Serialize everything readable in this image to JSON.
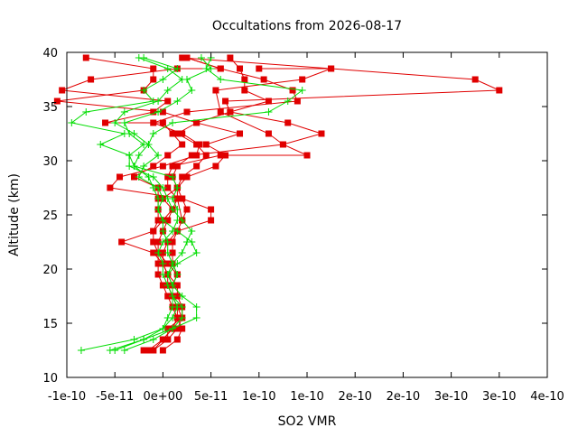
{
  "chart_data": {
    "type": "line",
    "title": "Occultations from 2026-08-17",
    "xlabel": "SO2 VMR",
    "ylabel": "Altitude (km)",
    "xlim": [
      -1e-10,
      4e-10
    ],
    "ylim": [
      10,
      40
    ],
    "x_tick_values": [
      -1e-10,
      -5e-11,
      0,
      5e-11,
      1e-10,
      1.5e-10,
      2e-10,
      2.5e-10,
      3e-10,
      3.5e-10,
      4e-10
    ],
    "x_tick_labels": [
      "-1e-10",
      "-5e-11",
      "0e+00",
      "5e-11",
      "1e-10",
      "1e-10",
      "2e-10",
      "2e-10",
      "3e-10",
      "3e-10",
      "4e-10"
    ],
    "y_ticks": [
      10,
      15,
      20,
      25,
      30,
      35,
      40
    ],
    "grid": false,
    "legend": "none",
    "series": [
      {
        "marker": "square",
        "color": "#e00000",
        "points": [
          [
            -2e-11,
            12.5
          ],
          [
            -1e-11,
            12.5
          ],
          [
            5e-12,
            13.5
          ],
          [
            1.5e-11,
            14.5
          ],
          [
            2e-11,
            15.5
          ],
          [
            1.5e-11,
            16.5
          ],
          [
            1e-11,
            17.5
          ],
          [
            5e-12,
            18.5
          ],
          [
            5e-12,
            19.5
          ],
          [
            0,
            20.5
          ],
          [
            -1e-11,
            21.5
          ],
          [
            -4.3e-11,
            22.5
          ],
          [
            -1e-11,
            23.5
          ],
          [
            -5e-12,
            24.5
          ],
          [
            -5e-12,
            25.5
          ],
          [
            -5e-12,
            26.5
          ],
          [
            -5e-12,
            27.5
          ],
          [
            -3e-11,
            28.5
          ],
          [
            -1e-11,
            29.5
          ],
          [
            5e-12,
            30.5
          ],
          [
            2e-11,
            31.5
          ],
          [
            1e-11,
            32.5
          ],
          [
            0,
            33.5
          ],
          [
            -6e-11,
            33.5
          ],
          [
            -1e-11,
            34.5
          ],
          [
            5e-12,
            35.5
          ],
          [
            -1.05e-10,
            36.5
          ],
          [
            -7.5e-11,
            37.5
          ],
          [
            1.5e-11,
            38.5
          ],
          [
            6e-11,
            38.5
          ],
          [
            2.5e-11,
            39.5
          ]
        ]
      },
      {
        "marker": "square",
        "color": "#e00000",
        "points": [
          [
            -1e-11,
            12.5
          ],
          [
            0,
            13.5
          ],
          [
            1e-11,
            14.5
          ],
          [
            1.5e-11,
            15.5
          ],
          [
            1e-11,
            16.5
          ],
          [
            5e-12,
            17.5
          ],
          [
            0,
            18.5
          ],
          [
            -5e-12,
            19.5
          ],
          [
            -5e-12,
            20.5
          ],
          [
            -5e-12,
            21.5
          ],
          [
            -1e-11,
            22.5
          ],
          [
            -1e-11,
            23.5
          ],
          [
            0,
            24.5
          ],
          [
            1e-11,
            25.5
          ],
          [
            1.5e-11,
            26.5
          ],
          [
            1.5e-11,
            27.5
          ],
          [
            2e-11,
            28.5
          ],
          [
            3.5e-11,
            29.5
          ],
          [
            4.5e-11,
            30.5
          ],
          [
            3.5e-11,
            31.5
          ],
          [
            1.5e-11,
            32.5
          ],
          [
            3.5e-11,
            33.5
          ],
          [
            0,
            34.5
          ],
          [
            -1.1e-10,
            35.5
          ],
          [
            -2e-11,
            36.5
          ],
          [
            -1e-11,
            37.5
          ],
          [
            -1e-11,
            38.5
          ],
          [
            -8e-11,
            39.5
          ]
        ]
      },
      {
        "marker": "square",
        "color": "#e00000",
        "points": [
          [
            0,
            12.5
          ],
          [
            1.5e-11,
            13.5
          ],
          [
            2e-11,
            14.5
          ],
          [
            1.5e-11,
            15.5
          ],
          [
            1.5e-11,
            16.5
          ],
          [
            1e-11,
            17.5
          ],
          [
            1e-11,
            18.5
          ],
          [
            1.5e-11,
            19.5
          ],
          [
            1e-11,
            20.5
          ],
          [
            1e-11,
            21.5
          ],
          [
            1e-11,
            22.5
          ],
          [
            1.5e-11,
            23.5
          ],
          [
            2e-11,
            24.5
          ],
          [
            2.5e-11,
            25.5
          ],
          [
            2e-11,
            26.5
          ],
          [
            -5.5e-11,
            27.5
          ],
          [
            -4.5e-11,
            28.5
          ],
          [
            0,
            29.5
          ],
          [
            3.5e-11,
            30.5
          ],
          [
            3.8e-11,
            31.5
          ],
          [
            2e-11,
            32.5
          ],
          [
            -1e-11,
            33.5
          ],
          [
            2.5e-11,
            34.5
          ],
          [
            1.4e-10,
            35.5
          ],
          [
            1.35e-10,
            36.5
          ],
          [
            1.05e-10,
            37.5
          ],
          [
            6e-11,
            38.5
          ],
          [
            2.5e-11,
            39.5
          ]
        ]
      },
      {
        "marker": "square",
        "color": "#e00000",
        "points": [
          [
            -1.5e-11,
            12.5
          ],
          [
            0,
            13.5
          ],
          [
            1e-11,
            14.5
          ],
          [
            1.5e-11,
            15.5
          ],
          [
            1e-11,
            16.5
          ],
          [
            1e-11,
            17.5
          ],
          [
            1e-11,
            18.5
          ],
          [
            1.5e-11,
            19.5
          ],
          [
            5e-12,
            20.5
          ],
          [
            -5e-12,
            21.5
          ],
          [
            -5e-12,
            22.5
          ],
          [
            0,
            23.5
          ],
          [
            5e-12,
            24.5
          ],
          [
            1e-11,
            25.5
          ],
          [
            0,
            26.5
          ],
          [
            1.5e-11,
            27.5
          ],
          [
            2.5e-11,
            28.5
          ],
          [
            5.5e-11,
            29.5
          ],
          [
            6.5e-11,
            30.5
          ],
          [
            4.5e-11,
            31.5
          ],
          [
            8e-11,
            32.5
          ],
          [
            3.5e-11,
            33.5
          ],
          [
            7e-11,
            34.5
          ],
          [
            1.1e-10,
            35.5
          ],
          [
            8.5e-11,
            36.5
          ],
          [
            8.5e-11,
            37.5
          ],
          [
            8e-11,
            38.5
          ],
          [
            7e-11,
            39.5
          ]
        ]
      },
      {
        "marker": "square",
        "color": "#e00000",
        "points": [
          [
            5e-12,
            13.5
          ],
          [
            5e-12,
            14.5
          ],
          [
            2e-11,
            15.5
          ],
          [
            2e-11,
            16.5
          ],
          [
            1.5e-11,
            17.5
          ],
          [
            1.5e-11,
            18.5
          ],
          [
            5e-12,
            19.5
          ],
          [
            0,
            20.5
          ],
          [
            0,
            21.5
          ],
          [
            5e-12,
            22.5
          ],
          [
            1.5e-11,
            23.5
          ],
          [
            5e-11,
            24.5
          ],
          [
            5e-11,
            25.5
          ],
          [
            2e-11,
            26.5
          ],
          [
            1.5e-11,
            27.5
          ],
          [
            1e-11,
            28.5
          ],
          [
            1.5e-11,
            29.5
          ],
          [
            3e-11,
            30.5
          ],
          [
            1.25e-10,
            31.5
          ],
          [
            1.65e-10,
            32.5
          ],
          [
            1.3e-10,
            33.5
          ],
          [
            7e-11,
            34.5
          ],
          [
            6.5e-11,
            35.5
          ],
          [
            3.5e-10,
            36.5
          ],
          [
            3.25e-10,
            37.5
          ],
          [
            1.75e-10,
            38.5
          ],
          [
            1e-10,
            38.5
          ]
        ]
      },
      {
        "marker": "square",
        "color": "#e00000",
        "points": [
          [
            2e-11,
            24.5
          ],
          [
            1.5e-11,
            26.5
          ],
          [
            5e-12,
            27.5
          ],
          [
            5e-12,
            28.5
          ],
          [
            1e-11,
            29.5
          ],
          [
            6e-11,
            30.5
          ],
          [
            1.5e-10,
            30.5
          ],
          [
            1.25e-10,
            31.5
          ],
          [
            1.1e-10,
            32.5
          ],
          [
            6e-11,
            34.5
          ],
          [
            5.5e-11,
            36.5
          ],
          [
            1.45e-10,
            37.5
          ],
          [
            1.75e-10,
            38.5
          ],
          [
            2e-11,
            39.5
          ]
        ]
      },
      {
        "marker": "plus",
        "color": "#00dd00",
        "points": [
          [
            -8.5e-11,
            12.5
          ],
          [
            -3e-11,
            13.5
          ],
          [
            0,
            14.5
          ],
          [
            5e-12,
            15.5
          ],
          [
            1e-11,
            16.5
          ],
          [
            1e-11,
            17.5
          ],
          [
            1e-11,
            18.5
          ],
          [
            1.5e-11,
            19.5
          ],
          [
            1e-11,
            20.5
          ],
          [
            5e-12,
            21.5
          ],
          [
            5e-12,
            22.5
          ],
          [
            0,
            23.5
          ],
          [
            0,
            24.5
          ],
          [
            -5e-12,
            25.5
          ],
          [
            -5e-12,
            26.5
          ],
          [
            -1e-11,
            27.5
          ],
          [
            -1.5e-11,
            28.5
          ],
          [
            -3e-11,
            29.5
          ],
          [
            -3.5e-11,
            30.5
          ],
          [
            -6.5e-11,
            31.5
          ],
          [
            -4e-11,
            32.5
          ],
          [
            -9.5e-11,
            33.5
          ],
          [
            -8e-11,
            34.5
          ],
          [
            -1e-11,
            35.5
          ],
          [
            -2e-11,
            36.5
          ],
          [
            0,
            37.5
          ],
          [
            1.5e-11,
            38.5
          ],
          [
            -2e-11,
            39.5
          ]
        ]
      },
      {
        "marker": "plus",
        "color": "#00dd00",
        "points": [
          [
            -5.5e-11,
            12.5
          ],
          [
            -2e-11,
            13.5
          ],
          [
            0,
            14.5
          ],
          [
            1e-11,
            15.5
          ],
          [
            1.5e-11,
            16.5
          ],
          [
            1e-11,
            17.5
          ],
          [
            1e-11,
            18.5
          ],
          [
            5e-12,
            19.5
          ],
          [
            1e-11,
            20.5
          ],
          [
            2e-11,
            21.5
          ],
          [
            2.5e-11,
            22.5
          ],
          [
            3e-11,
            23.5
          ],
          [
            2e-11,
            24.5
          ],
          [
            1e-11,
            25.5
          ],
          [
            5e-12,
            26.5
          ],
          [
            0,
            27.5
          ],
          [
            -1e-11,
            28.5
          ],
          [
            -3.5e-11,
            29.5
          ],
          [
            -3.5e-11,
            30.5
          ],
          [
            -2e-11,
            31.5
          ],
          [
            -3.5e-11,
            32.5
          ],
          [
            -4e-11,
            33.5
          ],
          [
            -5e-12,
            34.5
          ],
          [
            1.5e-11,
            35.5
          ],
          [
            3e-11,
            36.5
          ],
          [
            2.5e-11,
            37.5
          ],
          [
            5e-11,
            38.5
          ],
          [
            4e-11,
            39.5
          ]
        ]
      },
      {
        "marker": "plus",
        "color": "#00dd00",
        "points": [
          [
            -4e-11,
            12.5
          ],
          [
            -1e-11,
            13.5
          ],
          [
            1e-11,
            14.5
          ],
          [
            3.5e-11,
            15.5
          ],
          [
            3.5e-11,
            16.5
          ],
          [
            2e-11,
            17.5
          ],
          [
            1e-11,
            18.5
          ],
          [
            5e-12,
            19.5
          ],
          [
            1.5e-11,
            20.5
          ],
          [
            3.5e-11,
            21.5
          ],
          [
            3e-11,
            22.5
          ],
          [
            1.5e-11,
            23.5
          ],
          [
            0,
            24.5
          ],
          [
            -5e-12,
            25.5
          ],
          [
            0,
            26.5
          ],
          [
            -5e-12,
            27.5
          ],
          [
            -2.5e-11,
            28.5
          ],
          [
            -2e-11,
            29.5
          ],
          [
            -5e-12,
            30.5
          ],
          [
            -1.5e-11,
            31.5
          ],
          [
            -1e-11,
            32.5
          ],
          [
            1e-11,
            33.5
          ],
          [
            1.1e-10,
            34.5
          ],
          [
            1.3e-10,
            35.5
          ],
          [
            1.45e-10,
            36.5
          ],
          [
            6e-11,
            37.5
          ],
          [
            4.5e-11,
            38.5
          ],
          [
            5e-11,
            39.5
          ]
        ]
      },
      {
        "marker": "plus",
        "color": "#00dd00",
        "points": [
          [
            -5e-11,
            12.5
          ],
          [
            -2e-11,
            13.5
          ],
          [
            1e-11,
            14.5
          ],
          [
            2e-11,
            15.5
          ],
          [
            2e-11,
            16.5
          ],
          [
            1e-11,
            17.5
          ],
          [
            5e-12,
            18.5
          ],
          [
            0,
            19.5
          ],
          [
            0,
            20.5
          ],
          [
            -5e-12,
            21.5
          ],
          [
            0,
            22.5
          ],
          [
            1e-11,
            23.5
          ],
          [
            1.5e-11,
            24.5
          ],
          [
            1.5e-11,
            25.5
          ],
          [
            1e-11,
            26.5
          ],
          [
            1.5e-11,
            27.5
          ],
          [
            1e-11,
            28.5
          ],
          [
            -3e-11,
            29.5
          ],
          [
            -2.5e-11,
            30.5
          ],
          [
            -1.5e-11,
            31.5
          ],
          [
            -3e-11,
            32.5
          ],
          [
            -5e-11,
            33.5
          ],
          [
            -4e-11,
            34.5
          ],
          [
            -5e-12,
            35.5
          ],
          [
            5e-12,
            36.5
          ],
          [
            2e-11,
            37.5
          ],
          [
            5e-12,
            38.5
          ],
          [
            -2.5e-11,
            39.5
          ]
        ]
      }
    ]
  }
}
